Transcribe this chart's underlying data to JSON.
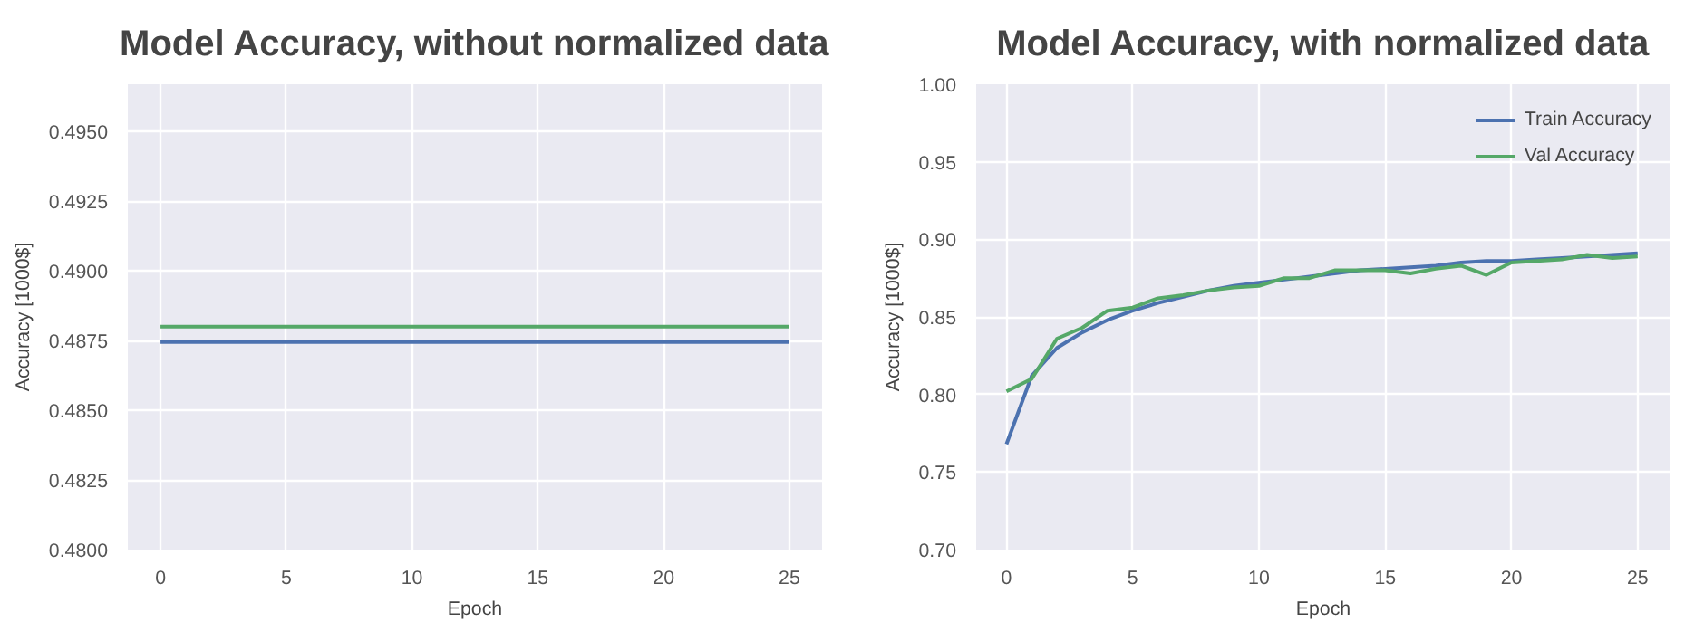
{
  "chart_data": [
    {
      "type": "line",
      "title": "Model Accuracy, without normalized data",
      "xlabel": "Epoch",
      "ylabel": "Accuracy [1000$]",
      "x": [
        0,
        25
      ],
      "series": [
        {
          "color": "#4c72b0",
          "values": [
            0.48745,
            0.48745
          ]
        },
        {
          "color": "#55a868",
          "values": [
            0.488,
            0.488
          ]
        }
      ],
      "xlim": [
        -1.3,
        26.3
      ],
      "ylim": [
        0.48,
        0.4967
      ],
      "xticks": [
        0,
        5,
        10,
        15,
        20,
        25
      ],
      "yticks": [
        {
          "value": 0.48,
          "label": "0.4800"
        },
        {
          "value": 0.4825,
          "label": "0.4825"
        },
        {
          "value": 0.485,
          "label": "0.4850"
        },
        {
          "value": 0.4875,
          "label": "0.4875"
        },
        {
          "value": 0.49,
          "label": "0.4900"
        },
        {
          "value": 0.4925,
          "label": "0.4925"
        },
        {
          "value": 0.495,
          "label": "0.4950"
        }
      ],
      "grid": true,
      "legend": false
    },
    {
      "type": "line",
      "title": "Model Accuracy, with normalized data",
      "xlabel": "Epoch",
      "ylabel": "Accuracy [1000$]",
      "x": [
        0,
        1,
        2,
        3,
        4,
        5,
        6,
        7,
        8,
        9,
        10,
        11,
        12,
        13,
        14,
        15,
        16,
        17,
        18,
        19,
        20,
        21,
        22,
        23,
        24,
        25
      ],
      "series": [
        {
          "name": "Train Accuracy",
          "color": "#4c72b0",
          "values": [
            0.768,
            0.812,
            0.83,
            0.84,
            0.848,
            0.854,
            0.859,
            0.863,
            0.867,
            0.87,
            0.872,
            0.874,
            0.876,
            0.878,
            0.88,
            0.881,
            0.882,
            0.883,
            0.885,
            0.886,
            0.886,
            0.887,
            0.888,
            0.889,
            0.89,
            0.891
          ]
        },
        {
          "name": "Val Accuracy",
          "color": "#55a868",
          "values": [
            0.802,
            0.81,
            0.836,
            0.843,
            0.854,
            0.856,
            0.862,
            0.864,
            0.867,
            0.869,
            0.87,
            0.875,
            0.875,
            0.88,
            0.88,
            0.88,
            0.878,
            0.881,
            0.883,
            0.877,
            0.885,
            0.886,
            0.887,
            0.89,
            0.888,
            0.889
          ]
        }
      ],
      "xlim": [
        -1.2,
        26.3
      ],
      "ylim": [
        0.7,
        1.0
      ],
      "xticks": [
        0,
        5,
        10,
        15,
        20,
        25
      ],
      "yticks": [
        {
          "value": 0.7,
          "label": "0.70"
        },
        {
          "value": 0.75,
          "label": "0.75"
        },
        {
          "value": 0.8,
          "label": "0.80"
        },
        {
          "value": 0.85,
          "label": "0.85"
        },
        {
          "value": 0.9,
          "label": "0.90"
        },
        {
          "value": 0.95,
          "label": "0.95"
        },
        {
          "value": 1.0,
          "label": "1.00"
        }
      ],
      "grid": true,
      "legend": "top right"
    }
  ]
}
